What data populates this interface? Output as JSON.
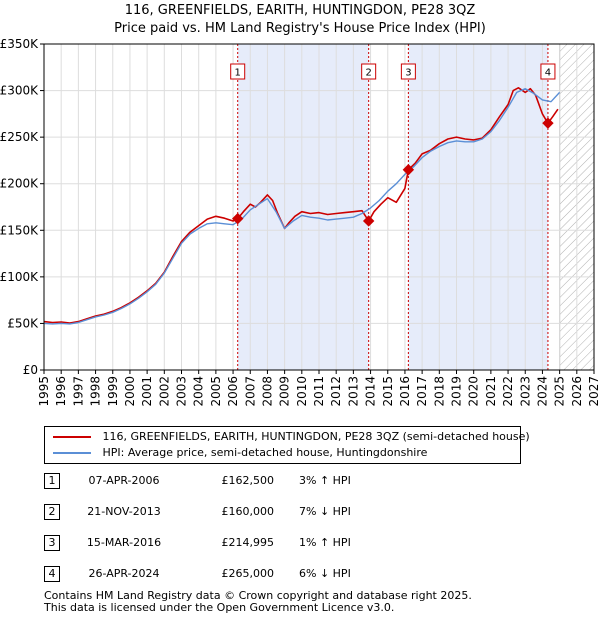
{
  "title": {
    "line1": "116, GREENFIELDS, EARITH, HUNTINGDON, PE28 3QZ",
    "line2": "Price paid vs. HM Land Registry's House Price Index (HPI)"
  },
  "chart_data": {
    "type": "line",
    "xlabel": "",
    "ylabel": "",
    "xlim": [
      1995,
      2027
    ],
    "ylim": [
      0,
      350000
    ],
    "x_ticks": [
      1995,
      1996,
      1997,
      1998,
      1999,
      2000,
      2001,
      2002,
      2003,
      2004,
      2005,
      2006,
      2007,
      2008,
      2009,
      2010,
      2011,
      2012,
      2013,
      2014,
      2015,
      2016,
      2017,
      2018,
      2019,
      2020,
      2021,
      2022,
      2023,
      2024,
      2025,
      2026,
      2027
    ],
    "y_ticks": [
      0,
      50000,
      100000,
      150000,
      200000,
      250000,
      300000,
      350000
    ],
    "y_tick_labels": [
      "£0",
      "£50K",
      "£100K",
      "£150K",
      "£200K",
      "£250K",
      "£300K",
      "£350K"
    ],
    "grid": true,
    "colors": {
      "property": "#cc0000",
      "hpi": "#5b8fd6",
      "shade": "#e6ecfa",
      "vline": "#cc0000"
    },
    "shaded_ranges": [
      [
        2006.27,
        2013.89
      ],
      [
        2016.2,
        2024.32
      ]
    ],
    "future_hatch_from": 2025.0,
    "series": [
      {
        "name": "116, GREENFIELDS, EARITH, HUNTINGDON, PE28 3QZ (semi-detached house)",
        "color": "#cc0000",
        "x": [
          1995,
          1995.5,
          1996,
          1996.5,
          1997,
          1997.5,
          1998,
          1998.5,
          1999,
          1999.5,
          2000,
          2000.5,
          2001,
          2001.5,
          2002,
          2002.5,
          2003,
          2003.5,
          2004,
          2004.5,
          2005,
          2005.5,
          2006,
          2006.27,
          2006.6,
          2007,
          2007.3,
          2007.6,
          2008,
          2008.3,
          2008.6,
          2009,
          2009.25,
          2009.6,
          2010,
          2010.5,
          2011,
          2011.5,
          2012,
          2012.5,
          2013,
          2013.5,
          2013.89,
          2014.2,
          2014.6,
          2015,
          2015.5,
          2016.0,
          2016.2,
          2016.6,
          2017,
          2017.5,
          2018,
          2018.5,
          2019,
          2019.5,
          2020,
          2020.5,
          2021,
          2021.5,
          2022,
          2022.3,
          2022.6,
          2023,
          2023.3,
          2023.6,
          2024.0,
          2024.32,
          2024.6,
          2024.9
        ],
        "y": [
          52000,
          51000,
          51500,
          50500,
          52000,
          55000,
          58000,
          60000,
          63000,
          67000,
          72000,
          78000,
          85000,
          93000,
          105000,
          122000,
          138000,
          148000,
          155000,
          162000,
          165000,
          163000,
          160000,
          162500,
          170000,
          178000,
          175000,
          180000,
          188000,
          182000,
          168000,
          152000,
          158000,
          165000,
          170000,
          168000,
          169000,
          167000,
          168000,
          169000,
          170000,
          171000,
          160000,
          170000,
          178000,
          185000,
          180000,
          195000,
          214995,
          222000,
          232000,
          236000,
          243000,
          248000,
          250000,
          248000,
          247000,
          249000,
          258000,
          272000,
          285000,
          300000,
          303000,
          298000,
          302000,
          295000,
          275000,
          265000,
          272000,
          280000
        ]
      },
      {
        "name": "HPI: Average price, semi-detached house, Huntingdonshire",
        "color": "#5b8fd6",
        "x": [
          1995,
          1995.5,
          1996,
          1996.5,
          1997,
          1997.5,
          1998,
          1998.5,
          1999,
          1999.5,
          2000,
          2000.5,
          2001,
          2001.5,
          2002,
          2002.5,
          2003,
          2003.5,
          2004,
          2004.5,
          2005,
          2005.5,
          2006,
          2006.5,
          2007,
          2007.5,
          2008,
          2008.5,
          2009,
          2009.5,
          2010,
          2010.5,
          2011,
          2011.5,
          2012,
          2012.5,
          2013,
          2013.5,
          2014,
          2014.5,
          2015,
          2015.5,
          2016,
          2016.5,
          2017,
          2017.5,
          2018,
          2018.5,
          2019,
          2019.5,
          2020,
          2020.5,
          2021,
          2021.5,
          2022,
          2022.5,
          2023,
          2023.5,
          2024,
          2024.5,
          2025
        ],
        "y": [
          50000,
          49500,
          50000,
          49500,
          51000,
          54000,
          57000,
          59000,
          62000,
          66000,
          71000,
          77000,
          84000,
          92000,
          104000,
          120000,
          136000,
          146000,
          152000,
          157000,
          158000,
          157000,
          156000,
          162000,
          172000,
          178000,
          184000,
          170000,
          152000,
          160000,
          166000,
          164000,
          163000,
          161000,
          162000,
          163000,
          164000,
          168000,
          174000,
          182000,
          192000,
          200000,
          210000,
          218000,
          228000,
          235000,
          240000,
          244000,
          246000,
          245000,
          245000,
          248000,
          256000,
          268000,
          282000,
          298000,
          302000,
          297000,
          290000,
          288000,
          298000
        ]
      }
    ],
    "sales": [
      {
        "label": "1",
        "x": 2006.27,
        "value": 162500
      },
      {
        "label": "2",
        "x": 2013.89,
        "value": 160000
      },
      {
        "label": "3",
        "x": 2016.2,
        "value": 214995
      },
      {
        "label": "4",
        "x": 2024.32,
        "value": 265000
      }
    ]
  },
  "legend": {
    "property": "116, GREENFIELDS, EARITH, HUNTINGDON, PE28 3QZ (semi-detached house)",
    "hpi": "HPI: Average price, semi-detached house, Huntingdonshire"
  },
  "sales_table": [
    {
      "num": "1",
      "date": "07-APR-2006",
      "price": "£162,500",
      "hpi": "3% ↑ HPI"
    },
    {
      "num": "2",
      "date": "21-NOV-2013",
      "price": "£160,000",
      "hpi": "7% ↓ HPI"
    },
    {
      "num": "3",
      "date": "15-MAR-2016",
      "price": "£214,995",
      "hpi": "1% ↑ HPI"
    },
    {
      "num": "4",
      "date": "26-APR-2024",
      "price": "£265,000",
      "hpi": "6% ↓ HPI"
    }
  ],
  "footer": {
    "line1": "Contains HM Land Registry data © Crown copyright and database right 2025.",
    "line2": "This data is licensed under the Open Government Licence v3.0."
  }
}
